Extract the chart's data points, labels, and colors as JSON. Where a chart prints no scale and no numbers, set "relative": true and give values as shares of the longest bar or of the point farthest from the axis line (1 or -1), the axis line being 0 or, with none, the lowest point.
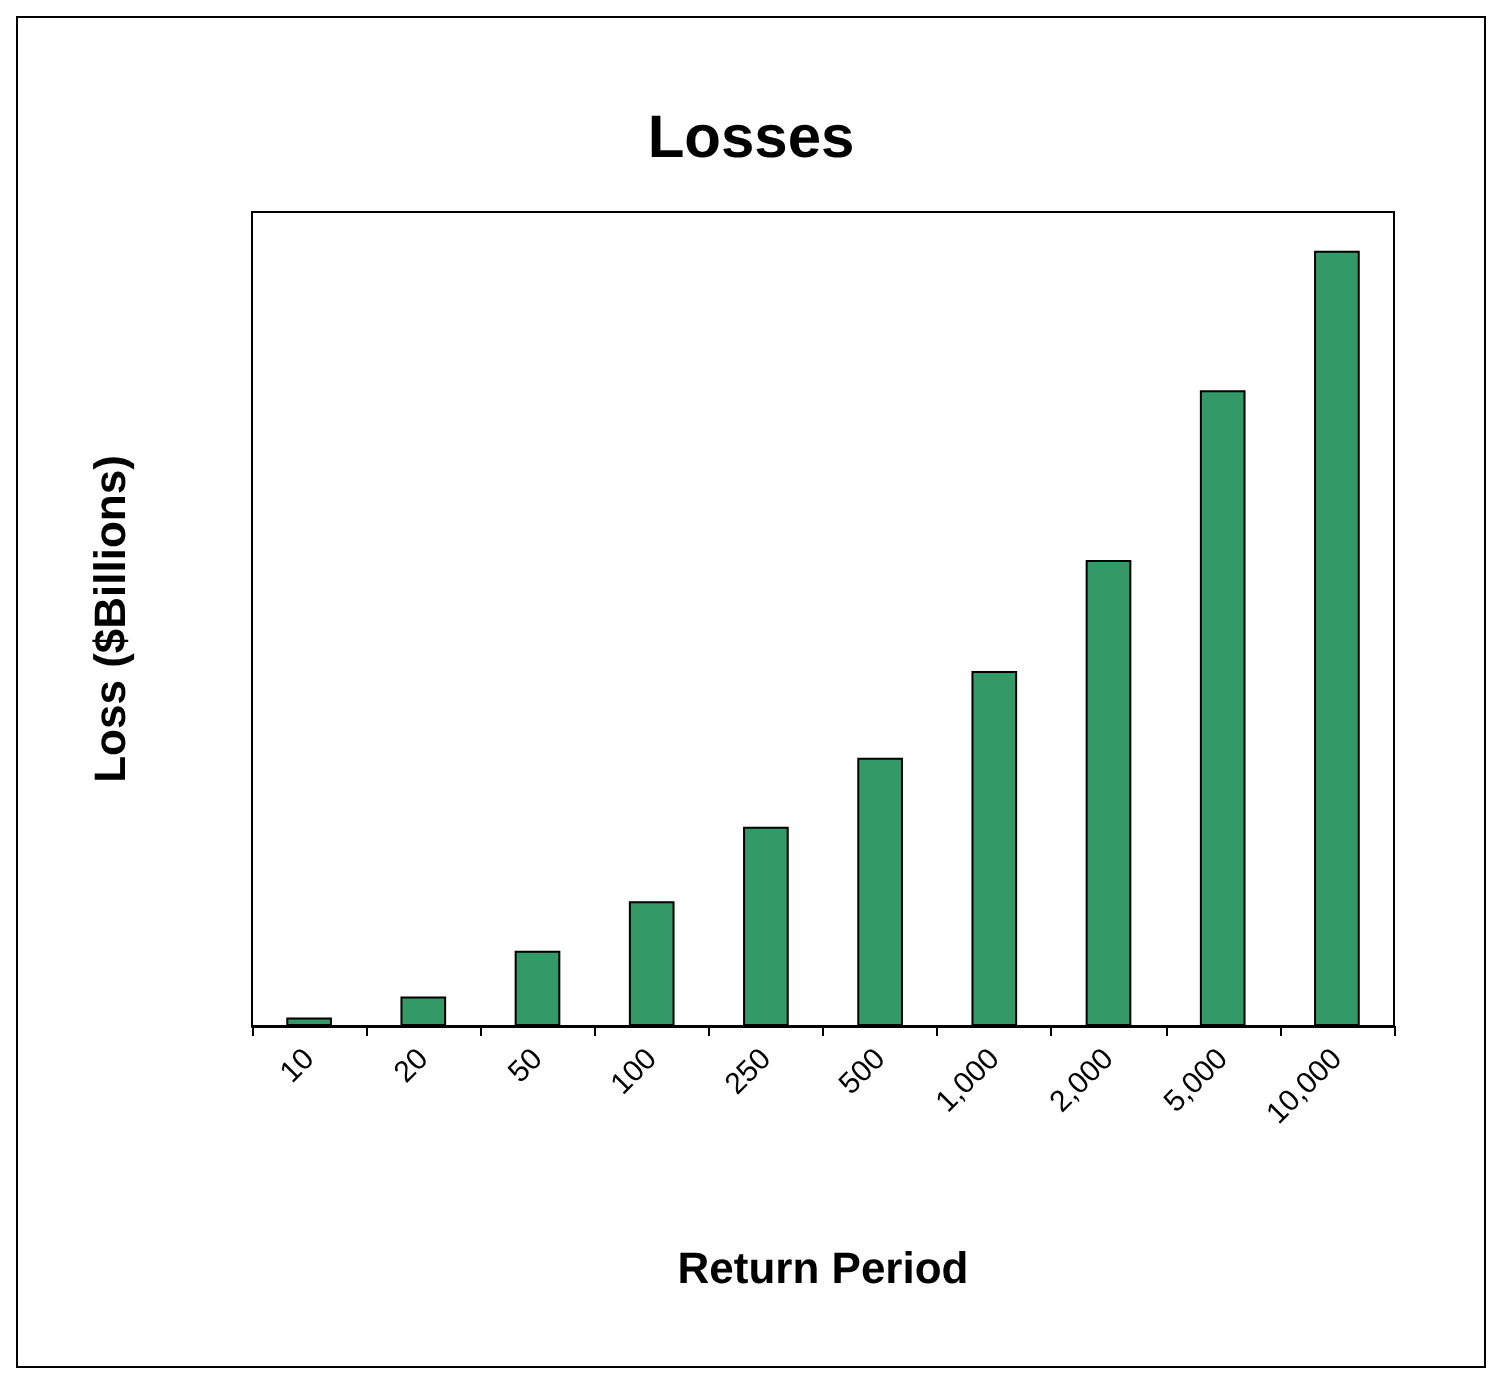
{
  "chart_data": {
    "type": "bar",
    "title": "Losses",
    "xlabel": "Return Period",
    "ylabel": "Loss ($Billions)",
    "categories": [
      "10",
      "20",
      "50",
      "100",
      "250",
      "500",
      "1,000",
      "2,000",
      "5,000",
      "10,000"
    ],
    "values": [
      0.011,
      0.038,
      0.097,
      0.161,
      0.257,
      0.346,
      0.458,
      0.601,
      0.82,
      1
    ],
    "color": "#339966",
    "relative": true
  }
}
